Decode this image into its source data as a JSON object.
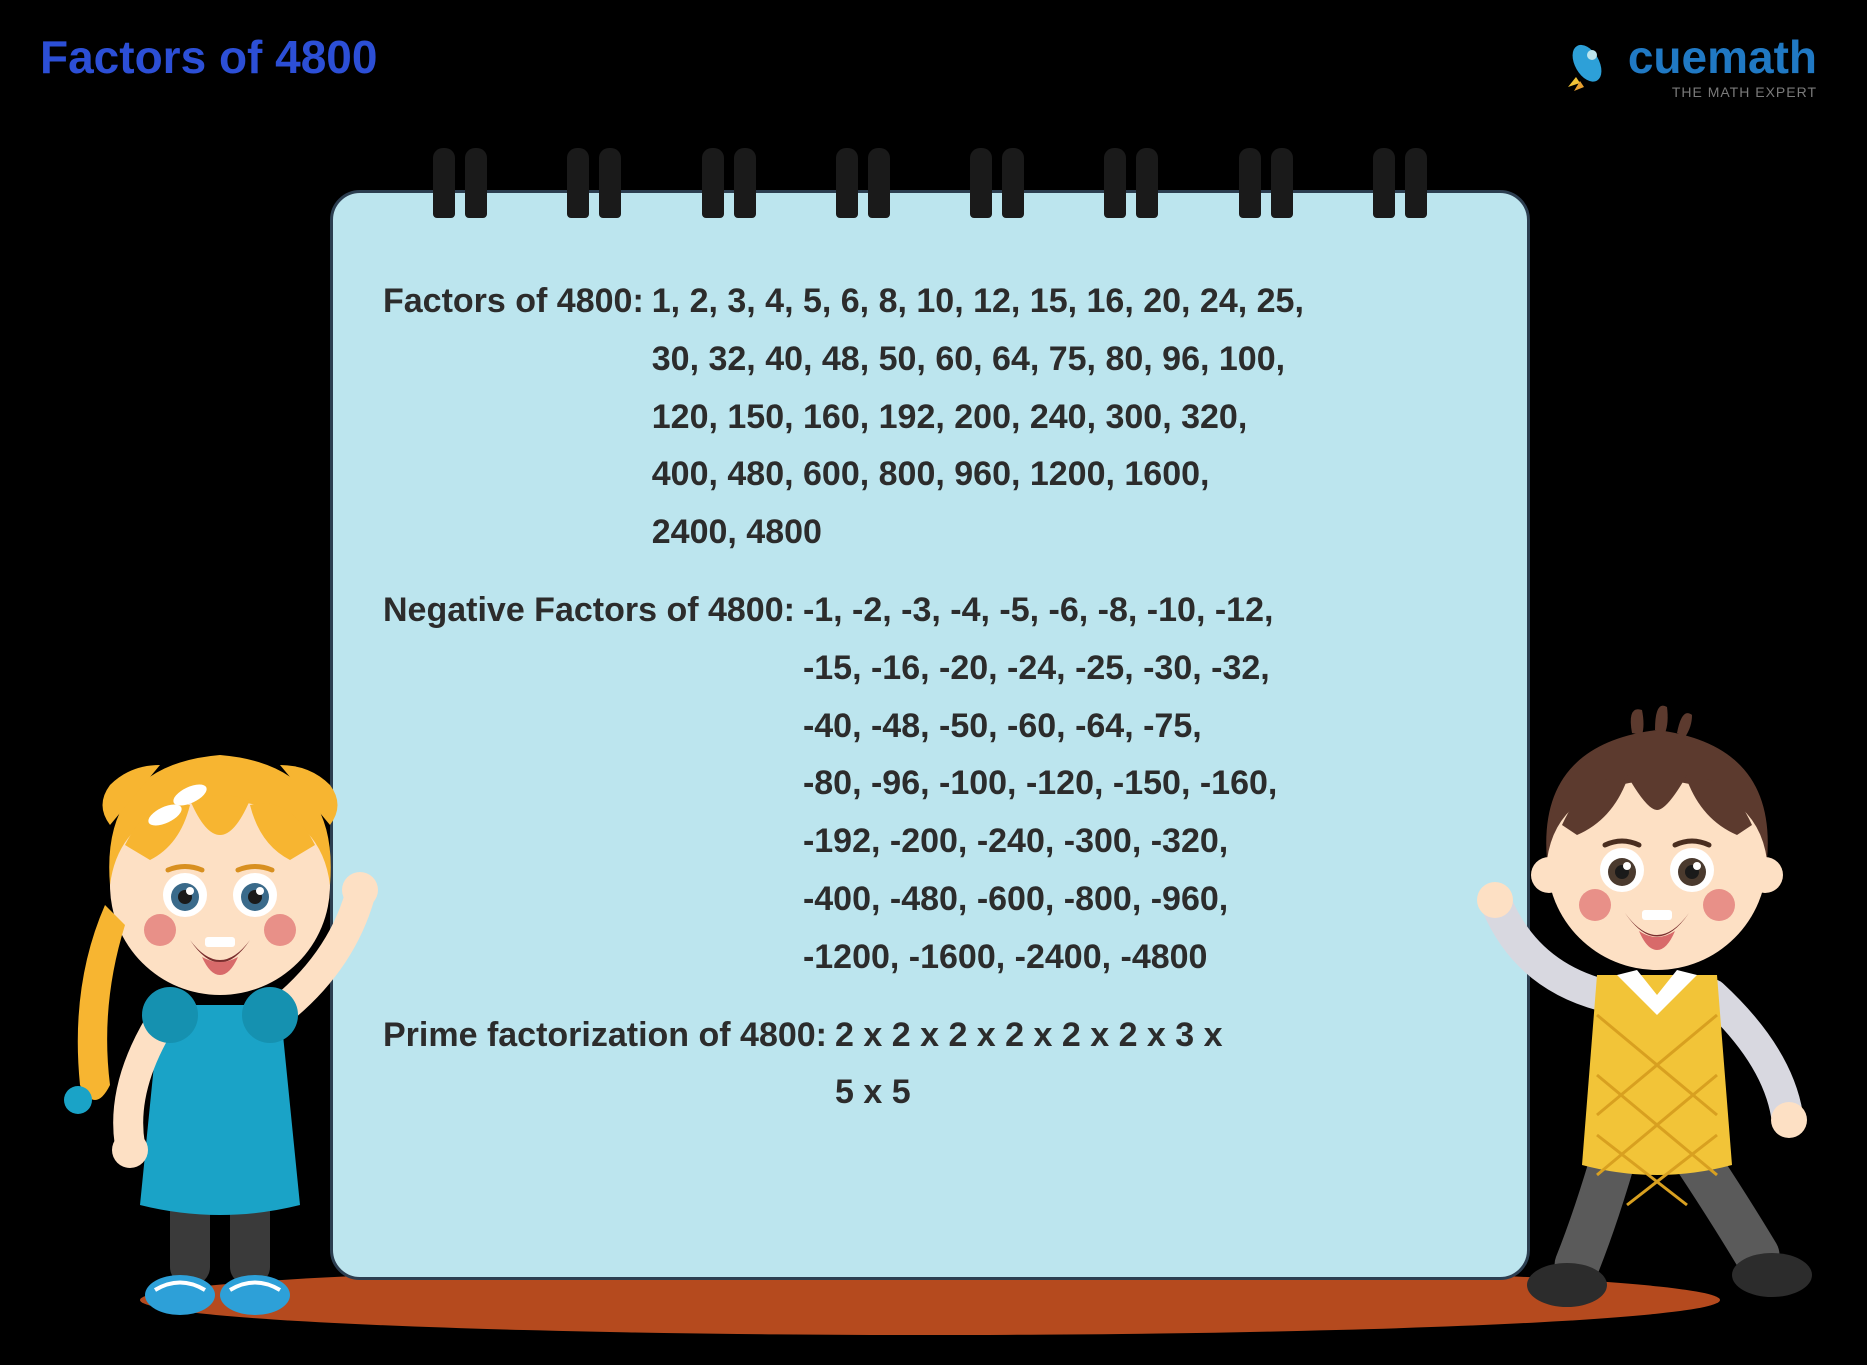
{
  "brand": {
    "name": "cuemath",
    "tagline": "THE MATH EXPERT"
  },
  "title": "Factors of 4800",
  "notepad": {
    "background_color": "#bce5ee",
    "border_color": "#2c3e50",
    "binding_count": 8,
    "sections": [
      {
        "label": "Factors of 4800:",
        "lines": [
          "1, 2, 3, 4, 5, 6, 8, 10, 12, 15, 16, 20, 24, 25,",
          "30, 32, 40, 48, 50, 60, 64, 75, 80, 96, 100,",
          "120, 150, 160, 192, 200, 240, 300, 320,",
          "400, 480, 600, 800, 960, 1200, 1600,",
          "2400, 4800"
        ]
      },
      {
        "label": "Negative Factors of 4800:",
        "lines": [
          "-1, -2, -3, -4, -5, -6, -8, -10, -12,",
          "-15, -16, -20, -24, -25, -30, -32,",
          "-40, -48, -50, -60, -64, -75,",
          "-80, -96, -100, -120, -150, -160,",
          "-192, -200, -240, -300, -320,",
          "-400, -480, -600, -800, -960,",
          "-1200, -1600, -2400, -4800"
        ]
      },
      {
        "label": "Prime factorization of 4800:",
        "lines": [
          "2 x 2 x 2 x 2 x 2 x 2 x 3 x",
          "5 x 5"
        ]
      }
    ]
  },
  "characters": {
    "left": {
      "description": "girl-blonde-pigtails-blue-dress",
      "hair_color": "#f7b531",
      "dress_color": "#1aa3c7",
      "shoe_color": "#2da0d8",
      "skin_color": "#fde0c4",
      "cheek_color": "#e89088"
    },
    "right": {
      "description": "boy-brown-hair-yellow-vest",
      "hair_color": "#5c3a2e",
      "vest_color": "#f2c438",
      "shirt_color": "#d8d8e0",
      "pants_color": "#5a5a5a",
      "shoe_color": "#2c2c2c",
      "skin_color": "#fde0c4",
      "cheek_color": "#e89088"
    }
  },
  "colors": {
    "page_background": "#000000",
    "title_color": "#2c4fd6",
    "brand_color": "#2079c4",
    "shadow_color": "#b54a1e",
    "rocket_body": "#2da0d8",
    "rocket_flame": "#f2c438"
  }
}
